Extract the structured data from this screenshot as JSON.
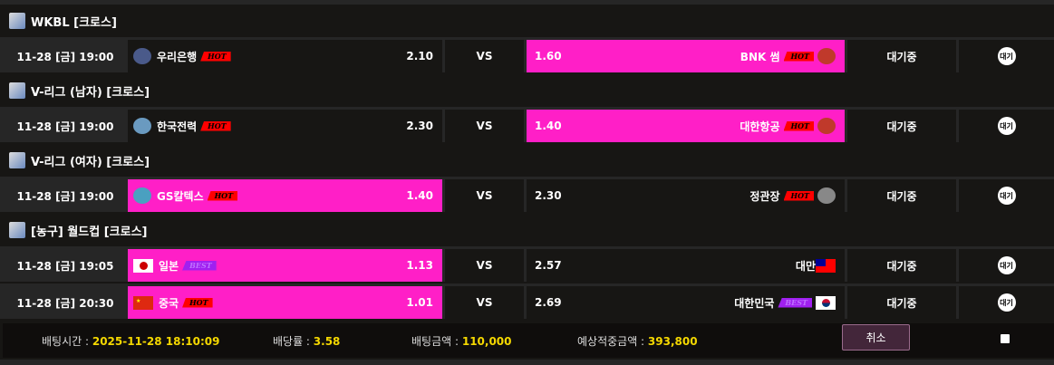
{
  "leagues": [
    {
      "title": "WKBL [크로스]",
      "icon": "wkbl-logo-icon",
      "games": [
        {
          "datetime": "11-28 [금] 19:00",
          "home": "우리은행",
          "home_badge": "HOT",
          "home_odds": "2.10",
          "vs": "VS",
          "away_odds": "1.60",
          "away": "BNK 썸",
          "away_badge": "HOT",
          "selected": "away",
          "status": "대기중",
          "result": "대기"
        }
      ]
    },
    {
      "title": "V-리그 (남자) [크로스]",
      "icon": "kovo-logo-icon",
      "games": [
        {
          "datetime": "11-28 [금] 19:00",
          "home": "한국전력",
          "home_badge": "HOT",
          "home_odds": "2.30",
          "vs": "VS",
          "away_odds": "1.40",
          "away": "대한항공",
          "away_badge": "HOT",
          "selected": "away",
          "status": "대기중",
          "result": "대기"
        }
      ]
    },
    {
      "title": "V-리그 (여자) [크로스]",
      "icon": "kovo-logo-icon",
      "games": [
        {
          "datetime": "11-28 [금] 19:00",
          "home": "GS칼텍스",
          "home_badge": "HOT",
          "home_odds": "1.40",
          "vs": "VS",
          "away_odds": "2.30",
          "away": "정관장",
          "away_badge": "HOT",
          "selected": "home",
          "status": "대기중",
          "result": "대기"
        }
      ]
    },
    {
      "title": "[농구] 월드컵 [크로스]",
      "icon": "world-cup-logo-icon",
      "games": [
        {
          "datetime": "11-28 [금] 19:05",
          "home": "일본",
          "home_badge": "BEST",
          "home_odds": "1.13",
          "vs": "VS",
          "away_odds": "2.57",
          "away": "대만",
          "away_badge": "",
          "selected": "home",
          "status": "대기중",
          "result": "대기"
        },
        {
          "datetime": "11-28 [금] 20:30",
          "home": "중국",
          "home_badge": "HOT",
          "home_odds": "1.01",
          "vs": "VS",
          "away_odds": "2.69",
          "away": "대한민국",
          "away_badge": "BEST",
          "selected": "home",
          "status": "대기중",
          "result": "대기"
        }
      ]
    }
  ],
  "footer": {
    "bet_time_label": "배팅시간 : ",
    "bet_time": "2025-11-28 18:10:09",
    "odds_label": "배당률 : ",
    "odds": "3.58",
    "amount_label": "배팅금액 : ",
    "amount": "110,000",
    "expected_label": "예상적중금액 : ",
    "expected": "393,800",
    "cancel": "취소"
  },
  "colors": {
    "selected": "#ff1fc7",
    "hot": "#ff0000",
    "best": "#a020f0",
    "highlight": "#f5d800"
  }
}
